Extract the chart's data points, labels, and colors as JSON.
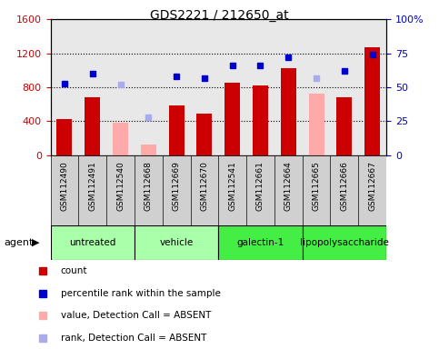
{
  "title": "GDS2221 / 212650_at",
  "samples": [
    "GSM112490",
    "GSM112491",
    "GSM112540",
    "GSM112668",
    "GSM112669",
    "GSM112670",
    "GSM112541",
    "GSM112661",
    "GSM112664",
    "GSM112665",
    "GSM112666",
    "GSM112667"
  ],
  "bar_values": [
    430,
    680,
    null,
    null,
    590,
    490,
    850,
    820,
    1020,
    null,
    680,
    1270
  ],
  "bar_absent_values": [
    null,
    null,
    380,
    130,
    null,
    null,
    null,
    null,
    null,
    730,
    null,
    null
  ],
  "dot_values": [
    53,
    60,
    null,
    null,
    58,
    57,
    66,
    66,
    72,
    null,
    62,
    74
  ],
  "dot_absent_values": [
    null,
    null,
    52,
    28,
    null,
    null,
    null,
    null,
    null,
    57,
    null,
    null
  ],
  "groups": [
    {
      "label": "untreated",
      "start": 0,
      "end": 3,
      "color": "#aaffaa"
    },
    {
      "label": "vehicle",
      "start": 3,
      "end": 6,
      "color": "#aaffaa"
    },
    {
      "label": "galectin-1",
      "start": 6,
      "end": 9,
      "color": "#44ee44"
    },
    {
      "label": "lipopolysaccharide",
      "start": 9,
      "end": 12,
      "color": "#44ee44"
    }
  ],
  "bar_color": "#cc0000",
  "bar_absent_color": "#ffaaaa",
  "dot_color": "#0000cc",
  "dot_absent_color": "#aaaaee",
  "ylim_left": [
    0,
    1600
  ],
  "ylim_right": [
    0,
    100
  ],
  "yticks_left": [
    0,
    400,
    800,
    1200,
    1600
  ],
  "yticks_right": [
    0,
    25,
    50,
    75,
    100
  ],
  "plot_bg": "#e8e8e8",
  "sample_box_bg": "#d0d0d0",
  "agent_label": "agent"
}
